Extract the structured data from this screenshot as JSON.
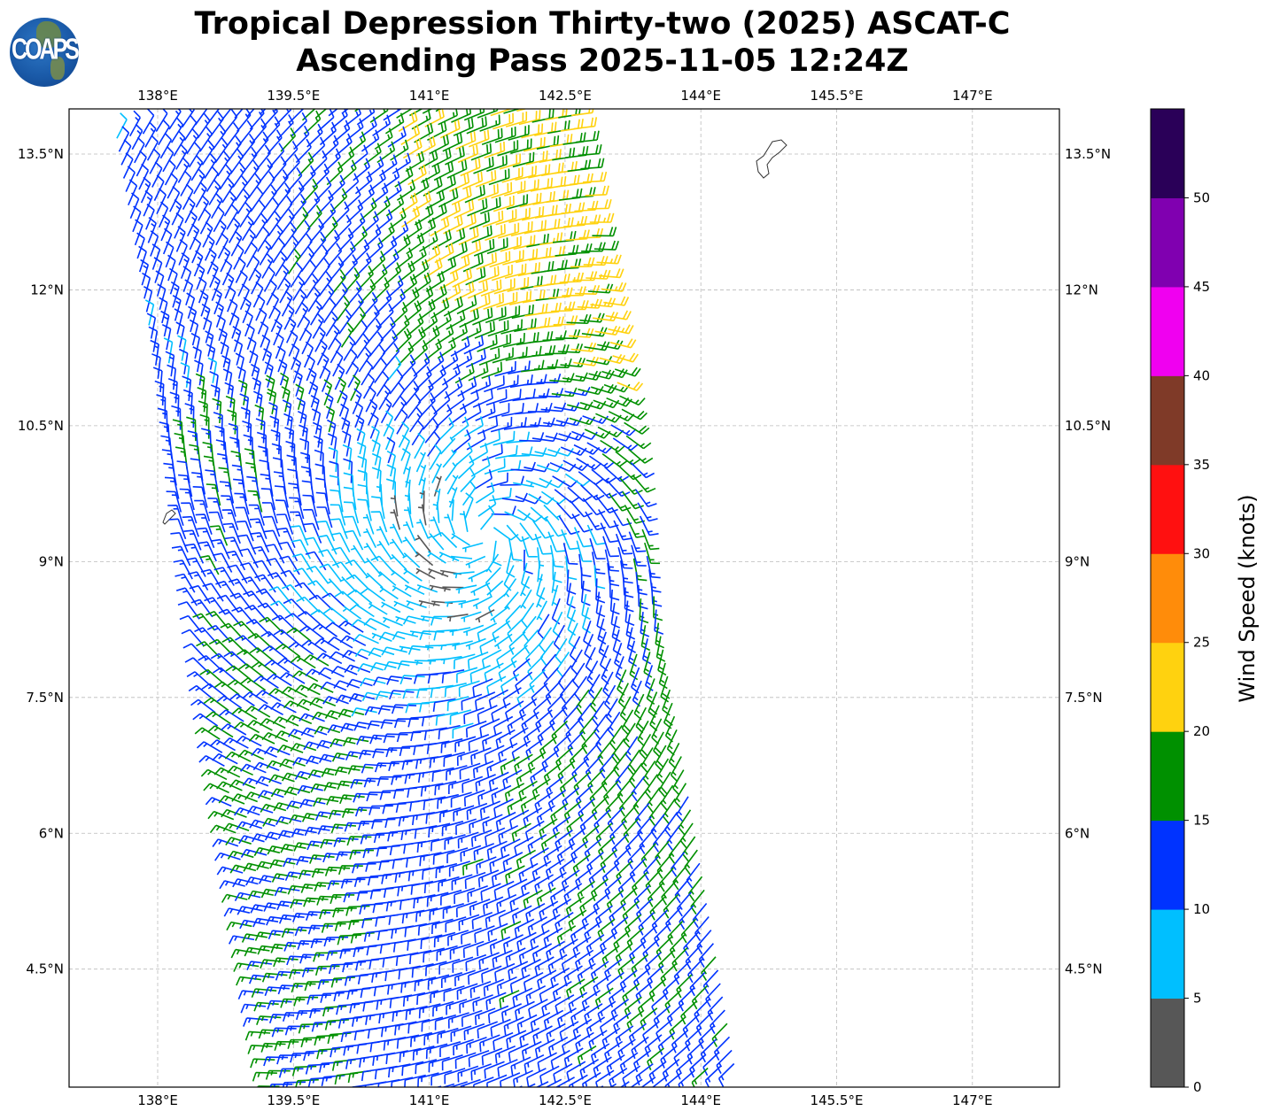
{
  "header": {
    "title_line1": "Tropical Depression Thirty-two (2025) ASCAT-C",
    "title_line2": "Ascending Pass 2025-11-05 12:24Z",
    "logo_text": "COAPS"
  },
  "chart_data": {
    "type": "wind-barb-map",
    "units": "knots",
    "lon_ticks": [
      "138°E",
      "139.5°E",
      "141°E",
      "142.5°E",
      "144°E",
      "145.5°E",
      "147°E"
    ],
    "lon_values": [
      138,
      139.5,
      141,
      142.5,
      144,
      145.5,
      147
    ],
    "lat_ticks": [
      "13.5°N",
      "12°N",
      "10.5°N",
      "9°N",
      "7.5°N",
      "6°N",
      "4.5°N"
    ],
    "lat_values": [
      13.5,
      12,
      10.5,
      9,
      7.5,
      6,
      4.5
    ],
    "extent": {
      "lon": [
        137.02,
        147.97
      ],
      "lat": [
        3.19,
        14.0
      ]
    },
    "grid": true,
    "circulation": "cyclonic",
    "circulation_center_estimate": {
      "lon": 141.6,
      "lat": 9.3
    },
    "strongest_winds": "north-east quadrant, 25-35 knots",
    "colorbar": {
      "label": "Wind Speed (knots)",
      "ticks": [
        "0",
        "5",
        "10",
        "15",
        "20",
        "25",
        "30",
        "35",
        "40",
        "45",
        "50"
      ],
      "bins": [
        0,
        5,
        10,
        15,
        20,
        25,
        30,
        35,
        40,
        45,
        50,
        55
      ],
      "colors": [
        "#575757",
        "#00bfff",
        "#0033ff",
        "#009000",
        "#ffd20f",
        "#ff8c0a",
        "#ff1010",
        "#7f3a28",
        "#f000f0",
        "#8000b0",
        "#2a0058"
      ]
    }
  }
}
